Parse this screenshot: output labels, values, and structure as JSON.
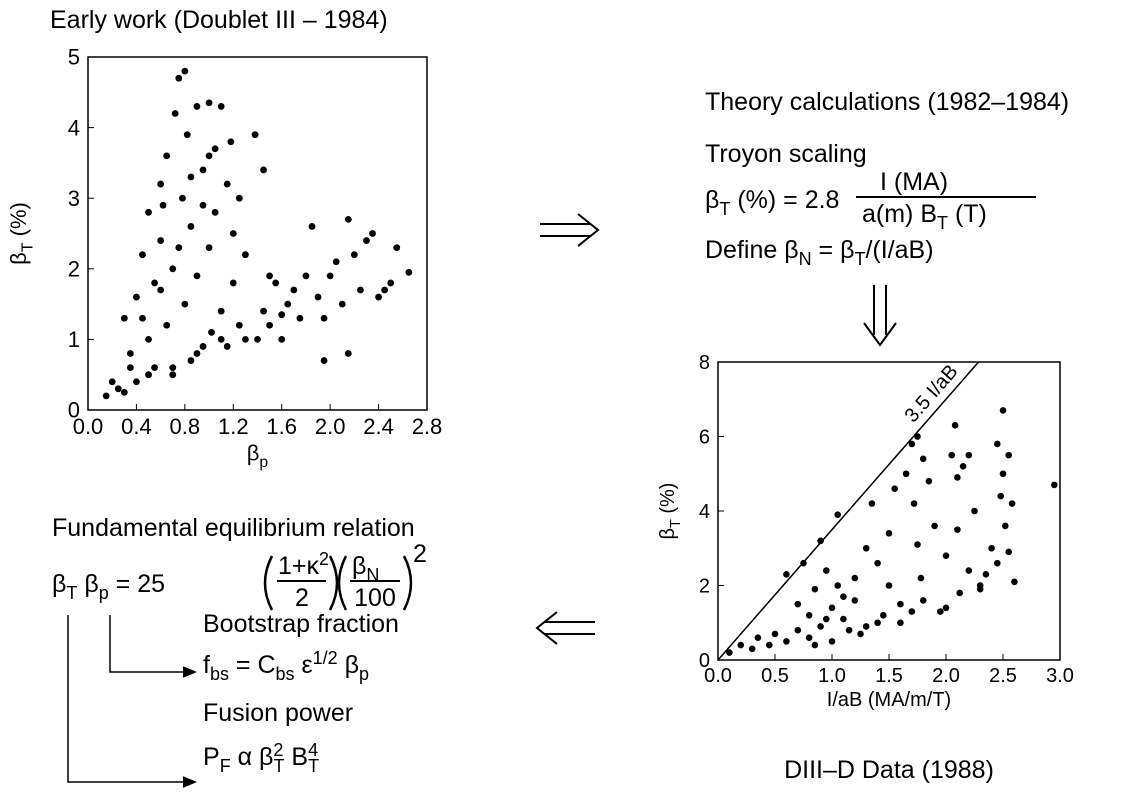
{
  "chart_data": [
    {
      "type": "scatter",
      "title": "Early work (Doublet III – 1984)",
      "x_label": [
        "β",
        "p"
      ],
      "y_label": [
        "β",
        "T",
        " (%)"
      ],
      "color": "#000000",
      "xlim": [
        0,
        2.8
      ],
      "ylim": [
        0,
        5
      ],
      "xticks": [
        {
          "value": 0,
          "label": "0.0"
        },
        0.4,
        0.8,
        1.2,
        1.6,
        {
          "value": 2,
          "label": "2.0"
        },
        2.4,
        2.8
      ],
      "yticks": [
        0,
        1,
        2,
        3,
        4,
        5
      ],
      "x": [
        0.15,
        0.2,
        0.25,
        0.3,
        0.35,
        0.4,
        0.4,
        0.45,
        0.5,
        0.5,
        0.55,
        0.55,
        0.6,
        0.6,
        0.65,
        0.65,
        0.7,
        0.7,
        0.72,
        0.75,
        0.78,
        0.8,
        0.8,
        0.82,
        0.85,
        0.85,
        0.9,
        0.9,
        0.95,
        0.95,
        1.0,
        1.0,
        1.02,
        1.05,
        1.05,
        1.1,
        1.1,
        1.15,
        1.15,
        1.2,
        1.2,
        1.25,
        1.25,
        1.3,
        1.3,
        1.38,
        1.45,
        1.45,
        1.4,
        1.5,
        1.55,
        1.6,
        1.65,
        1.7,
        1.75,
        1.8,
        1.85,
        1.9,
        1.95,
        1.95,
        2.0,
        2.05,
        2.1,
        2.15,
        2.15,
        2.2,
        2.25,
        2.3,
        2.35,
        2.4,
        2.45,
        2.5,
        2.55,
        2.65,
        0.3,
        0.5,
        0.7,
        0.9,
        1.1,
        0.6,
        0.45,
        0.35,
        0.75,
        0.95,
        1.0,
        0.85,
        0.62,
        1.18,
        1.6,
        1.5
      ],
      "values": [
        0.2,
        0.4,
        0.3,
        1.3,
        0.8,
        1.6,
        0.4,
        2.2,
        1.0,
        2.8,
        0.6,
        1.8,
        3.2,
        2.4,
        1.2,
        3.6,
        0.5,
        2.0,
        4.2,
        4.7,
        3.0,
        4.8,
        1.5,
        3.9,
        2.6,
        0.7,
        4.3,
        1.9,
        3.4,
        0.9,
        4.35,
        2.3,
        1.1,
        3.7,
        2.8,
        4.3,
        1.4,
        3.2,
        0.9,
        2.5,
        1.8,
        1.2,
        3.0,
        2.2,
        1.0,
        3.9,
        3.4,
        1.4,
        1.0,
        1.2,
        1.8,
        1.0,
        1.5,
        1.7,
        1.3,
        1.9,
        2.6,
        1.6,
        0.7,
        1.3,
        1.9,
        2.1,
        1.5,
        2.7,
        0.8,
        2.2,
        1.7,
        2.4,
        2.5,
        1.6,
        1.7,
        1.8,
        2.3,
        1.95,
        0.25,
        0.5,
        0.6,
        0.8,
        1.0,
        1.7,
        1.3,
        0.6,
        2.3,
        2.9,
        3.6,
        3.3,
        2.9,
        3.8,
        1.35,
        1.9
      ]
    },
    {
      "type": "scatter",
      "caption": "DIII–D Data (1988)",
      "x_label": [
        "I/aB (MA/m/T)"
      ],
      "y_label": [
        "β",
        "T",
        " (%)"
      ],
      "color": "#000000",
      "reference_line": {
        "label": "3.5 I/aB",
        "slope": 3.5
      },
      "xlim": [
        0,
        3
      ],
      "ylim": [
        0,
        8
      ],
      "xticks": [
        {
          "value": 0,
          "label": "0.0"
        },
        0.5,
        {
          "value": 1,
          "label": "1.0"
        },
        1.5,
        {
          "value": 2,
          "label": "2.0"
        },
        2.5,
        {
          "value": 3,
          "label": "3.0"
        }
      ],
      "yticks": [
        0,
        2,
        4,
        6,
        8
      ],
      "x": [
        0.1,
        0.2,
        0.3,
        0.35,
        0.45,
        0.5,
        0.6,
        0.6,
        0.7,
        0.7,
        0.75,
        0.8,
        0.85,
        0.85,
        0.9,
        0.9,
        0.95,
        1.0,
        1.0,
        1.05,
        1.05,
        1.1,
        1.15,
        1.2,
        1.2,
        1.3,
        1.3,
        1.35,
        1.4,
        1.45,
        1.5,
        1.5,
        1.55,
        1.6,
        1.65,
        1.7,
        1.72,
        1.75,
        1.75,
        1.78,
        1.8,
        1.8,
        1.85,
        1.9,
        1.95,
        2.0,
        2.05,
        2.08,
        2.1,
        2.1,
        2.12,
        2.15,
        2.2,
        2.2,
        2.25,
        2.3,
        2.35,
        2.4,
        2.45,
        2.48,
        2.5,
        2.5,
        2.52,
        2.55,
        2.58,
        2.6,
        2.95,
        1.25,
        1.4,
        1.6,
        0.8,
        0.95,
        1.1,
        2.0,
        1.7,
        2.3,
        2.45,
        2.55
      ],
      "values": [
        0.2,
        0.4,
        0.3,
        0.6,
        0.4,
        0.7,
        0.5,
        2.3,
        0.8,
        1.5,
        2.6,
        1.2,
        0.4,
        1.9,
        3.2,
        0.9,
        2.4,
        1.4,
        0.5,
        3.9,
        2.0,
        1.1,
        0.8,
        2.2,
        1.6,
        3.0,
        0.9,
        4.2,
        2.6,
        1.2,
        3.4,
        2.0,
        4.6,
        1.5,
        5.0,
        5.8,
        4.2,
        6.0,
        3.1,
        2.2,
        5.4,
        1.6,
        4.8,
        3.6,
        1.3,
        2.8,
        5.5,
        6.3,
        4.9,
        3.5,
        1.8,
        5.2,
        5.5,
        2.4,
        4.0,
        1.9,
        2.3,
        3.0,
        5.8,
        4.4,
        6.7,
        5.0,
        3.6,
        2.9,
        4.2,
        2.1,
        4.7,
        0.7,
        1.0,
        1.0,
        0.6,
        1.1,
        1.7,
        1.4,
        1.3,
        2.0,
        2.6,
        5.5
      ]
    }
  ],
  "theory": {
    "title": "Theory calculations (1982–1984)",
    "subtitle": "Troyon scaling",
    "formula": [
      "β",
      "T",
      " (%) = 2.8",
      "I (MA)",
      "a(m) B",
      "T",
      " (T)"
    ],
    "define": [
      "Define β",
      "N",
      " = β",
      "T",
      "/(I/aB)"
    ]
  },
  "equilibrium": {
    "title": "Fundamental equilibrium relation",
    "formula": [
      "β",
      "T",
      " β",
      "p",
      " = 25",
      "1+κ",
      "2",
      "2",
      "β",
      "N",
      "100",
      "2"
    ],
    "bootstrap": {
      "title": "Bootstrap fraction",
      "formula": [
        "f",
        "bs",
        " = C",
        "bs",
        " ε",
        "1/2",
        " β",
        "p"
      ]
    },
    "fusion": {
      "title": "Fusion power",
      "formula": [
        "P",
        "F",
        " α β",
        "2",
        "T",
        " B",
        "4",
        "T"
      ]
    }
  }
}
